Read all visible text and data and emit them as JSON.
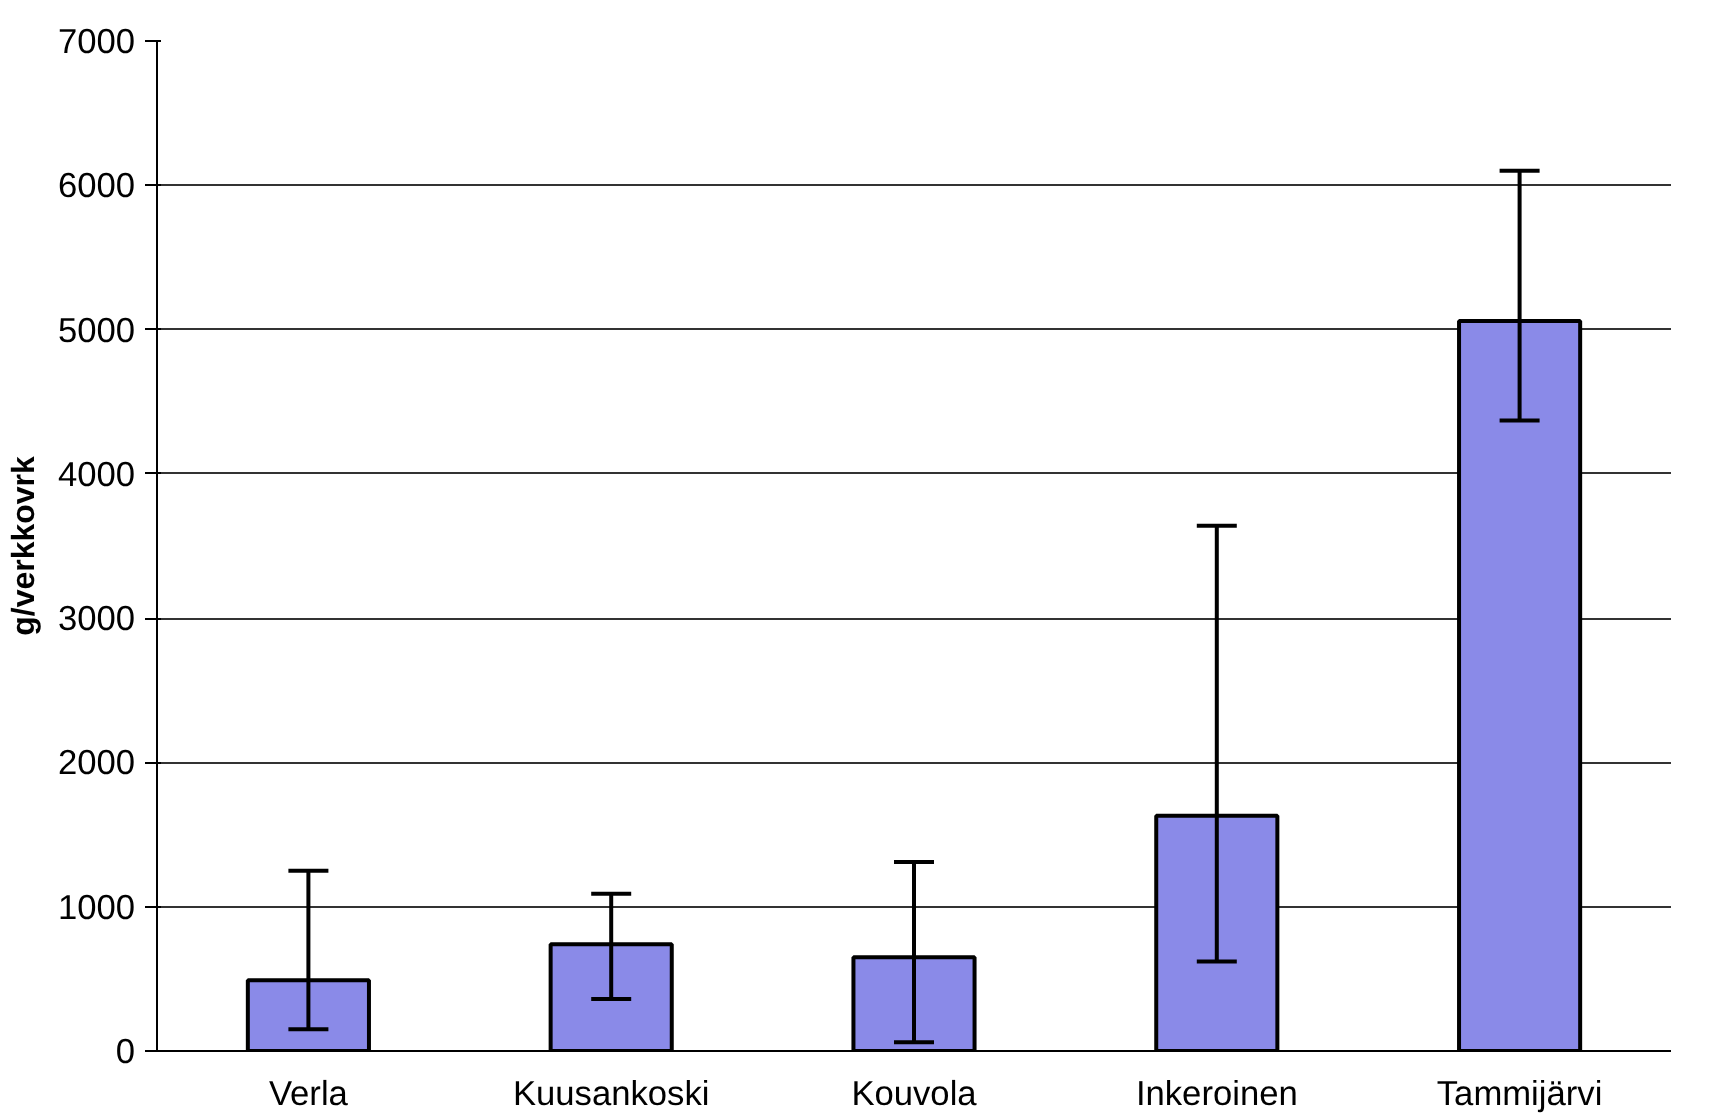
{
  "chart_data": {
    "type": "bar",
    "ylabel": "g/verkkovrk",
    "categories": [
      "Verla",
      "Kuusankoski",
      "Kouvola",
      "Inkeroinen",
      "Tammijärvi"
    ],
    "values": [
      490,
      740,
      650,
      1630,
      5060
    ],
    "errors": [
      [
        150,
        1250
      ],
      [
        360,
        1090
      ],
      [
        60,
        1310
      ],
      [
        620,
        3640
      ],
      [
        4370,
        6100
      ]
    ],
    "color": "#8a8ae8",
    "ylim": [
      0,
      7000
    ],
    "yticks": [
      0,
      1000,
      2000,
      3000,
      4000,
      5000,
      6000,
      7000
    ],
    "grid": "y"
  }
}
